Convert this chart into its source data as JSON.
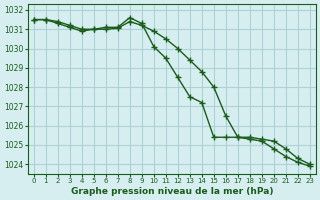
{
  "title": "Graphe pression niveau de la mer (hPa)",
  "background_color": "#d6eef0",
  "grid_color": "#b0d0d8",
  "line_color": "#1a5c1a",
  "x_labels": [
    "0",
    "1",
    "2",
    "3",
    "4",
    "5",
    "6",
    "7",
    "8",
    "9",
    "10",
    "11",
    "12",
    "13",
    "14",
    "15",
    "16",
    "17",
    "18",
    "19",
    "20",
    "21",
    "22",
    "23"
  ],
  "series1": [
    1031.5,
    1031.5,
    1031.3,
    1031.1,
    1030.9,
    1031.0,
    1031.1,
    1031.1,
    1031.6,
    1031.3,
    1030.1,
    1029.5,
    1028.5,
    1027.5,
    1027.2,
    1025.4,
    1025.4,
    1025.4,
    1025.3,
    1025.2,
    1024.8,
    1024.4,
    1024.1,
    1023.9
  ],
  "series2": [
    1031.5,
    1031.5,
    1031.4,
    1031.2,
    1031.0,
    1031.0,
    1031.0,
    1031.05,
    1031.4,
    1031.2,
    1030.9,
    1030.5,
    1030.0,
    1029.4,
    1028.8,
    1028.0,
    1026.5,
    1025.4,
    1025.4,
    1025.3,
    1025.2,
    1024.8,
    1024.3,
    1024.0
  ],
  "ylim_min": 1023.5,
  "ylim_max": 1032.3,
  "yticks": [
    1024,
    1025,
    1026,
    1027,
    1028,
    1029,
    1030,
    1031,
    1032
  ]
}
